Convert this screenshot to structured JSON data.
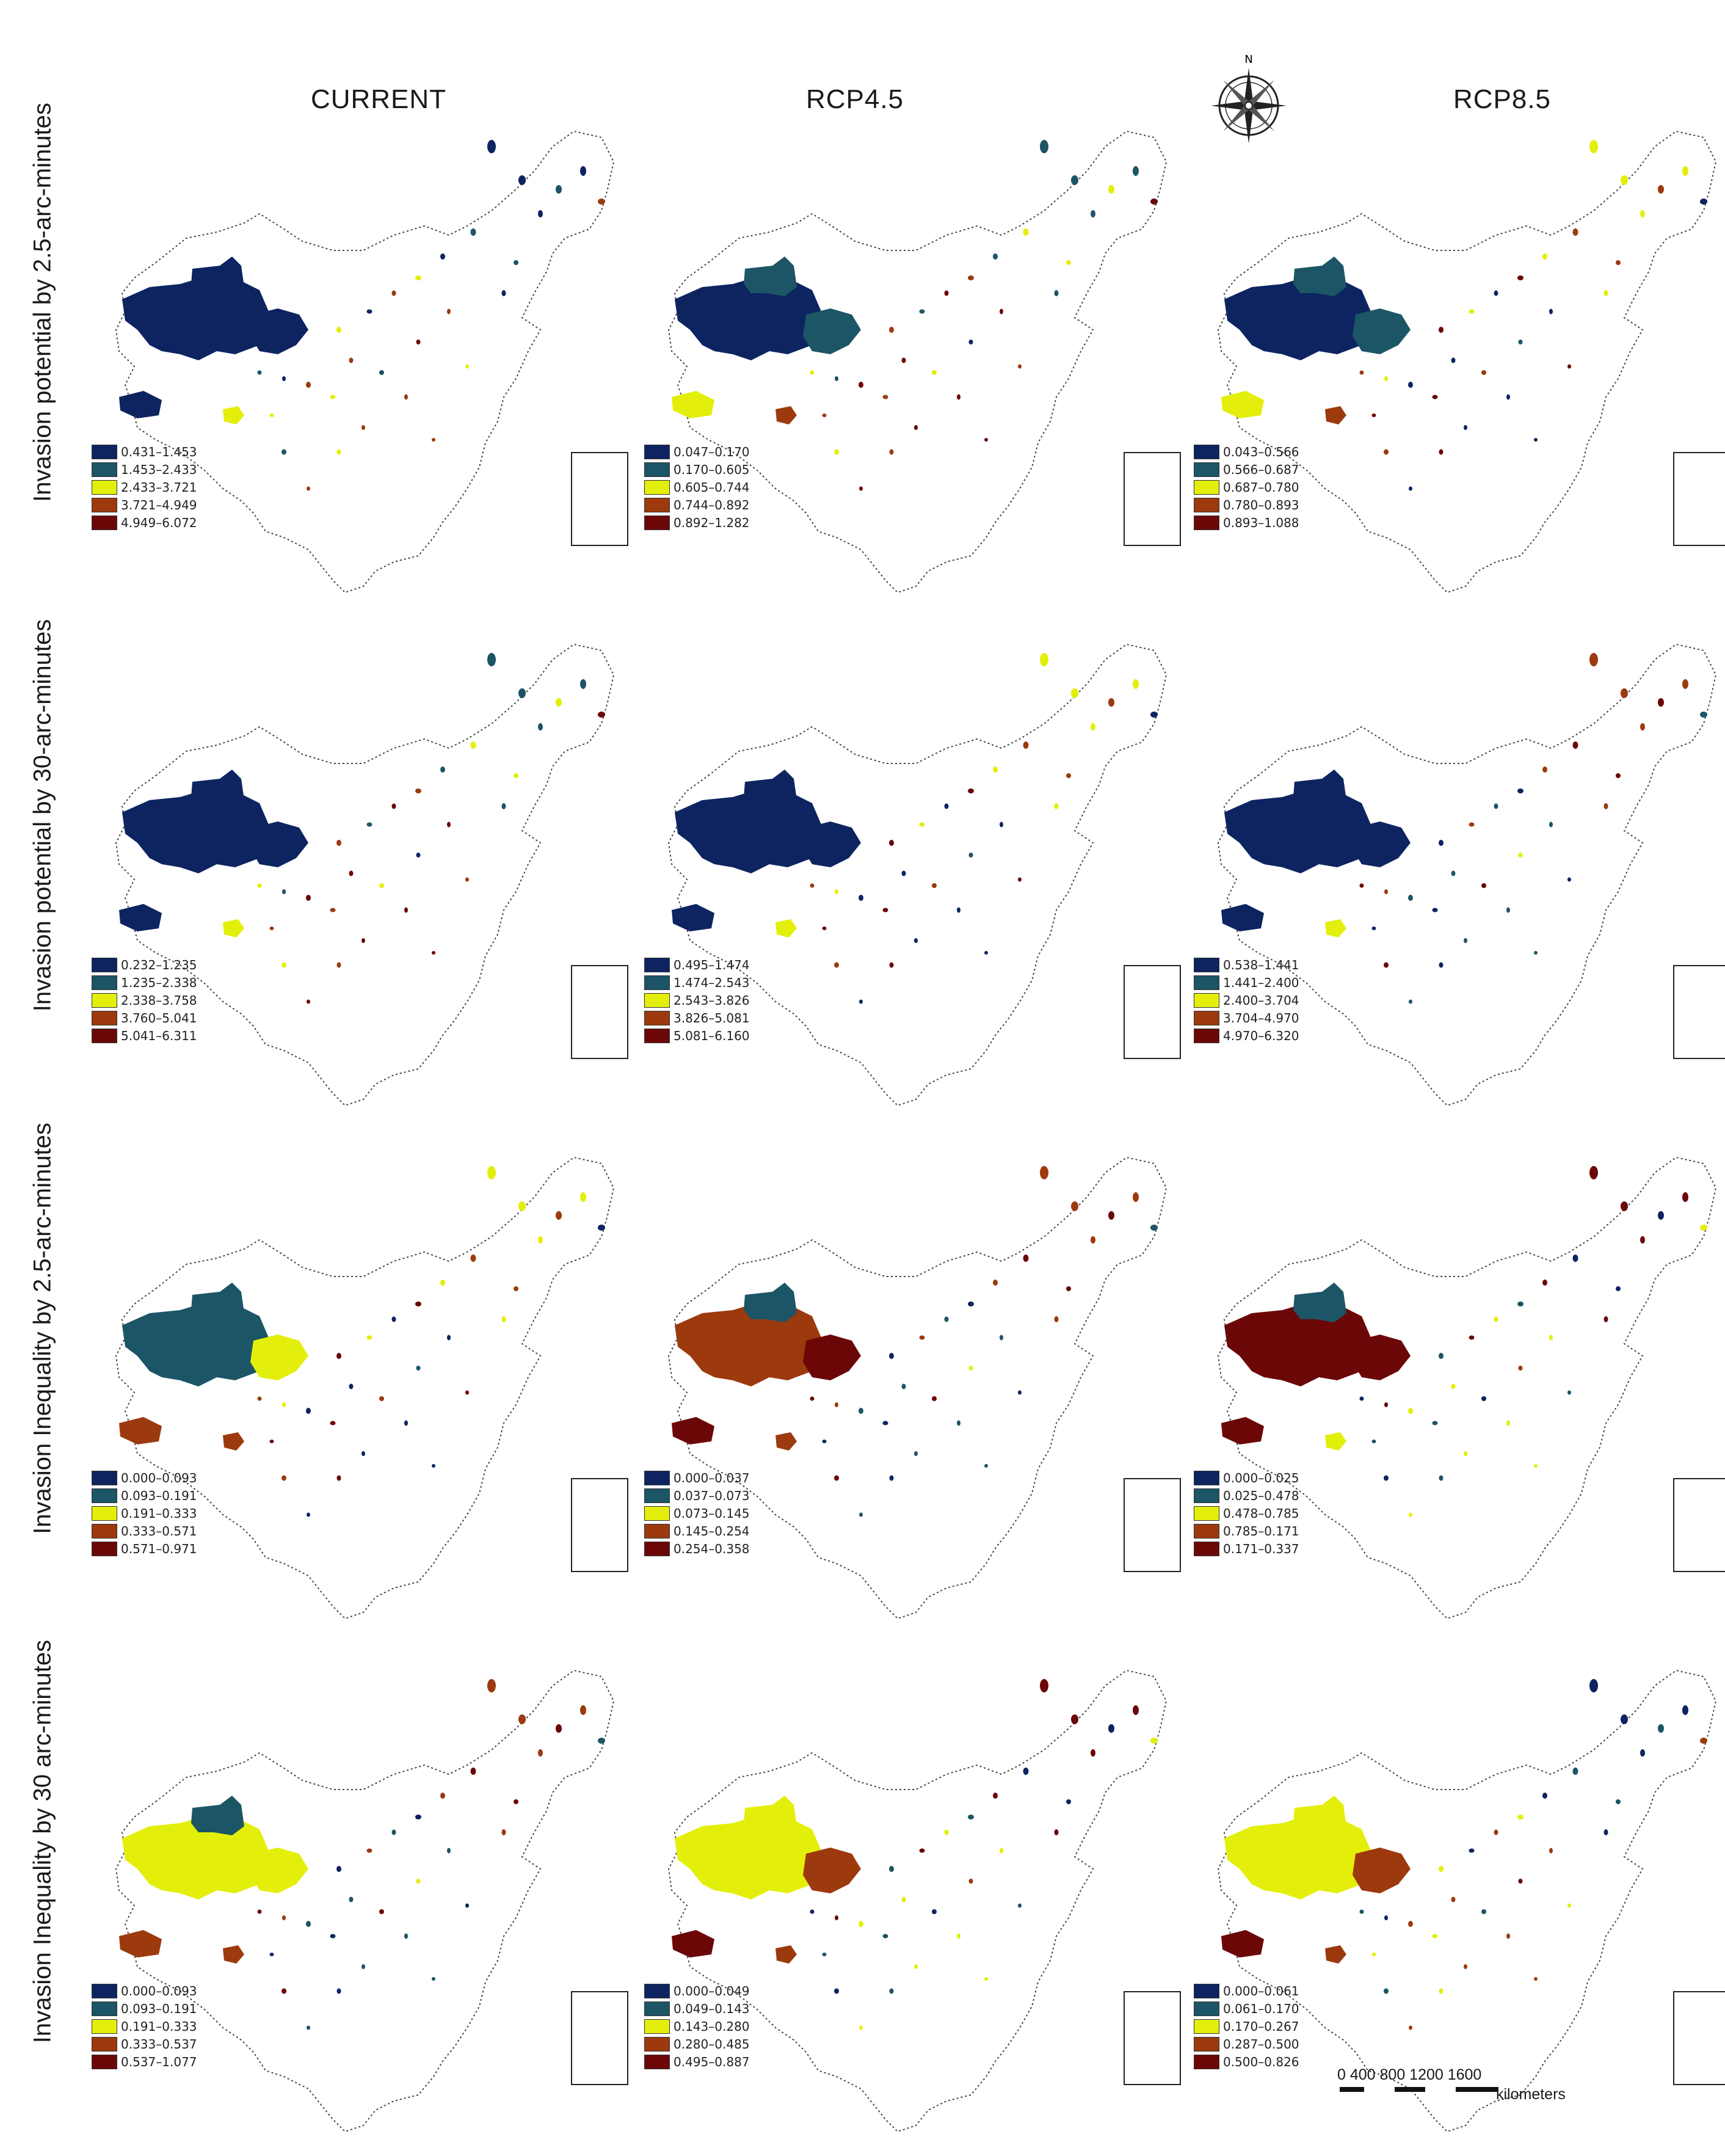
{
  "columns": [
    "CURRENT",
    "RCP4.5",
    "RCP8.5"
  ],
  "rows": [
    "Invasion potential by 2.5-arc-minutes",
    "Invasion potential by 30-arc-minutes",
    "Invasion Inequality by 2.5-arc-minutes",
    "Invasion Inequality by 30 arc-minutes"
  ],
  "colors": [
    "#0d2461",
    "#1c5566",
    "#e3ef0a",
    "#9c3a0e",
    "#6c0708"
  ],
  "legends": [
    [
      [
        "0.431–1.453",
        "1.453–2.433",
        "2.433–3.721",
        "3.721–4.949",
        "4.949–6.072"
      ],
      [
        "0.047–0.170",
        "0.170–0.605",
        "0.605–0.744",
        "0.744–0.892",
        "0.892–1.282"
      ],
      [
        "0.043–0.566",
        "0.566–0.687",
        "0.687–0.780",
        "0.780–0.893",
        "0.893–1.088"
      ]
    ],
    [
      [
        "0.232–1.235",
        "1.235–2.338",
        "2.338–3.758",
        "3.760–5.041",
        "5.041–6.311"
      ],
      [
        "0.495–1.474",
        "1.474–2.543",
        "2.543–3.826",
        "3.826–5.081",
        "5.081–6.160"
      ],
      [
        "0.538–1.441",
        "1.441–2.400",
        "2.400–3.704",
        "3.704–4.970",
        "4.970–6.320"
      ]
    ],
    [
      [
        "0.000–0.093",
        "0.093–0.191",
        "0.191–0.333",
        "0.333–0.571",
        "0.571–0.971"
      ],
      [
        "0.000–0.037",
        "0.037–0.073",
        "0.073–0.145",
        "0.145–0.254",
        "0.254–0.358"
      ],
      [
        "0.000–0.025",
        "0.025–0.478",
        "0.478–0.785",
        "0.785–0.171",
        "0.171–0.337"
      ]
    ],
    [
      [
        "0.000–0.093",
        "0.093–0.191",
        "0.191–0.333",
        "0.333–0.537",
        "0.537–1.077"
      ],
      [
        "0.000–0.049",
        "0.049–0.143",
        "0.143–0.280",
        "0.280–0.485",
        "0.495–0.887"
      ],
      [
        "0.000–0.061",
        "0.061–0.170",
        "0.170–0.267",
        "0.287–0.500",
        "0.500–0.826"
      ]
    ]
  ],
  "maps": [
    [
      {
        "tibet": 0,
        "qinghai": 0,
        "plateau_e": 0,
        "south_tip": 0,
        "sw_blob": 2
      },
      {
        "tibet": 0,
        "qinghai": 1,
        "plateau_e": 1,
        "south_tip": 2,
        "sw_blob": 3
      },
      {
        "tibet": 0,
        "qinghai": 1,
        "plateau_e": 1,
        "south_tip": 2,
        "sw_blob": 3
      }
    ],
    [
      {
        "tibet": 0,
        "qinghai": 0,
        "plateau_e": 0,
        "south_tip": 0,
        "sw_blob": 2
      },
      {
        "tibet": 0,
        "qinghai": 0,
        "plateau_e": 0,
        "south_tip": 0,
        "sw_blob": 2
      },
      {
        "tibet": 0,
        "qinghai": 0,
        "plateau_e": 0,
        "south_tip": 0,
        "sw_blob": 2
      }
    ],
    [
      {
        "tibet": 1,
        "qinghai": 1,
        "plateau_e": 2,
        "south_tip": 3,
        "sw_blob": 3
      },
      {
        "tibet": 3,
        "qinghai": 1,
        "plateau_e": 4,
        "south_tip": 4,
        "sw_blob": 3
      },
      {
        "tibet": 4,
        "qinghai": 1,
        "plateau_e": 4,
        "south_tip": 4,
        "sw_blob": 2
      }
    ],
    [
      {
        "tibet": 2,
        "qinghai": 1,
        "plateau_e": 2,
        "south_tip": 3,
        "sw_blob": 3
      },
      {
        "tibet": 2,
        "qinghai": 2,
        "plateau_e": 3,
        "south_tip": 4,
        "sw_blob": 3
      },
      {
        "tibet": 2,
        "qinghai": 2,
        "plateau_e": 3,
        "south_tip": 4,
        "sw_blob": 3
      }
    ]
  ],
  "compass_label": "N",
  "scale": {
    "ticks": "0   400   800 1200  1600",
    "unit": "kilometers"
  }
}
